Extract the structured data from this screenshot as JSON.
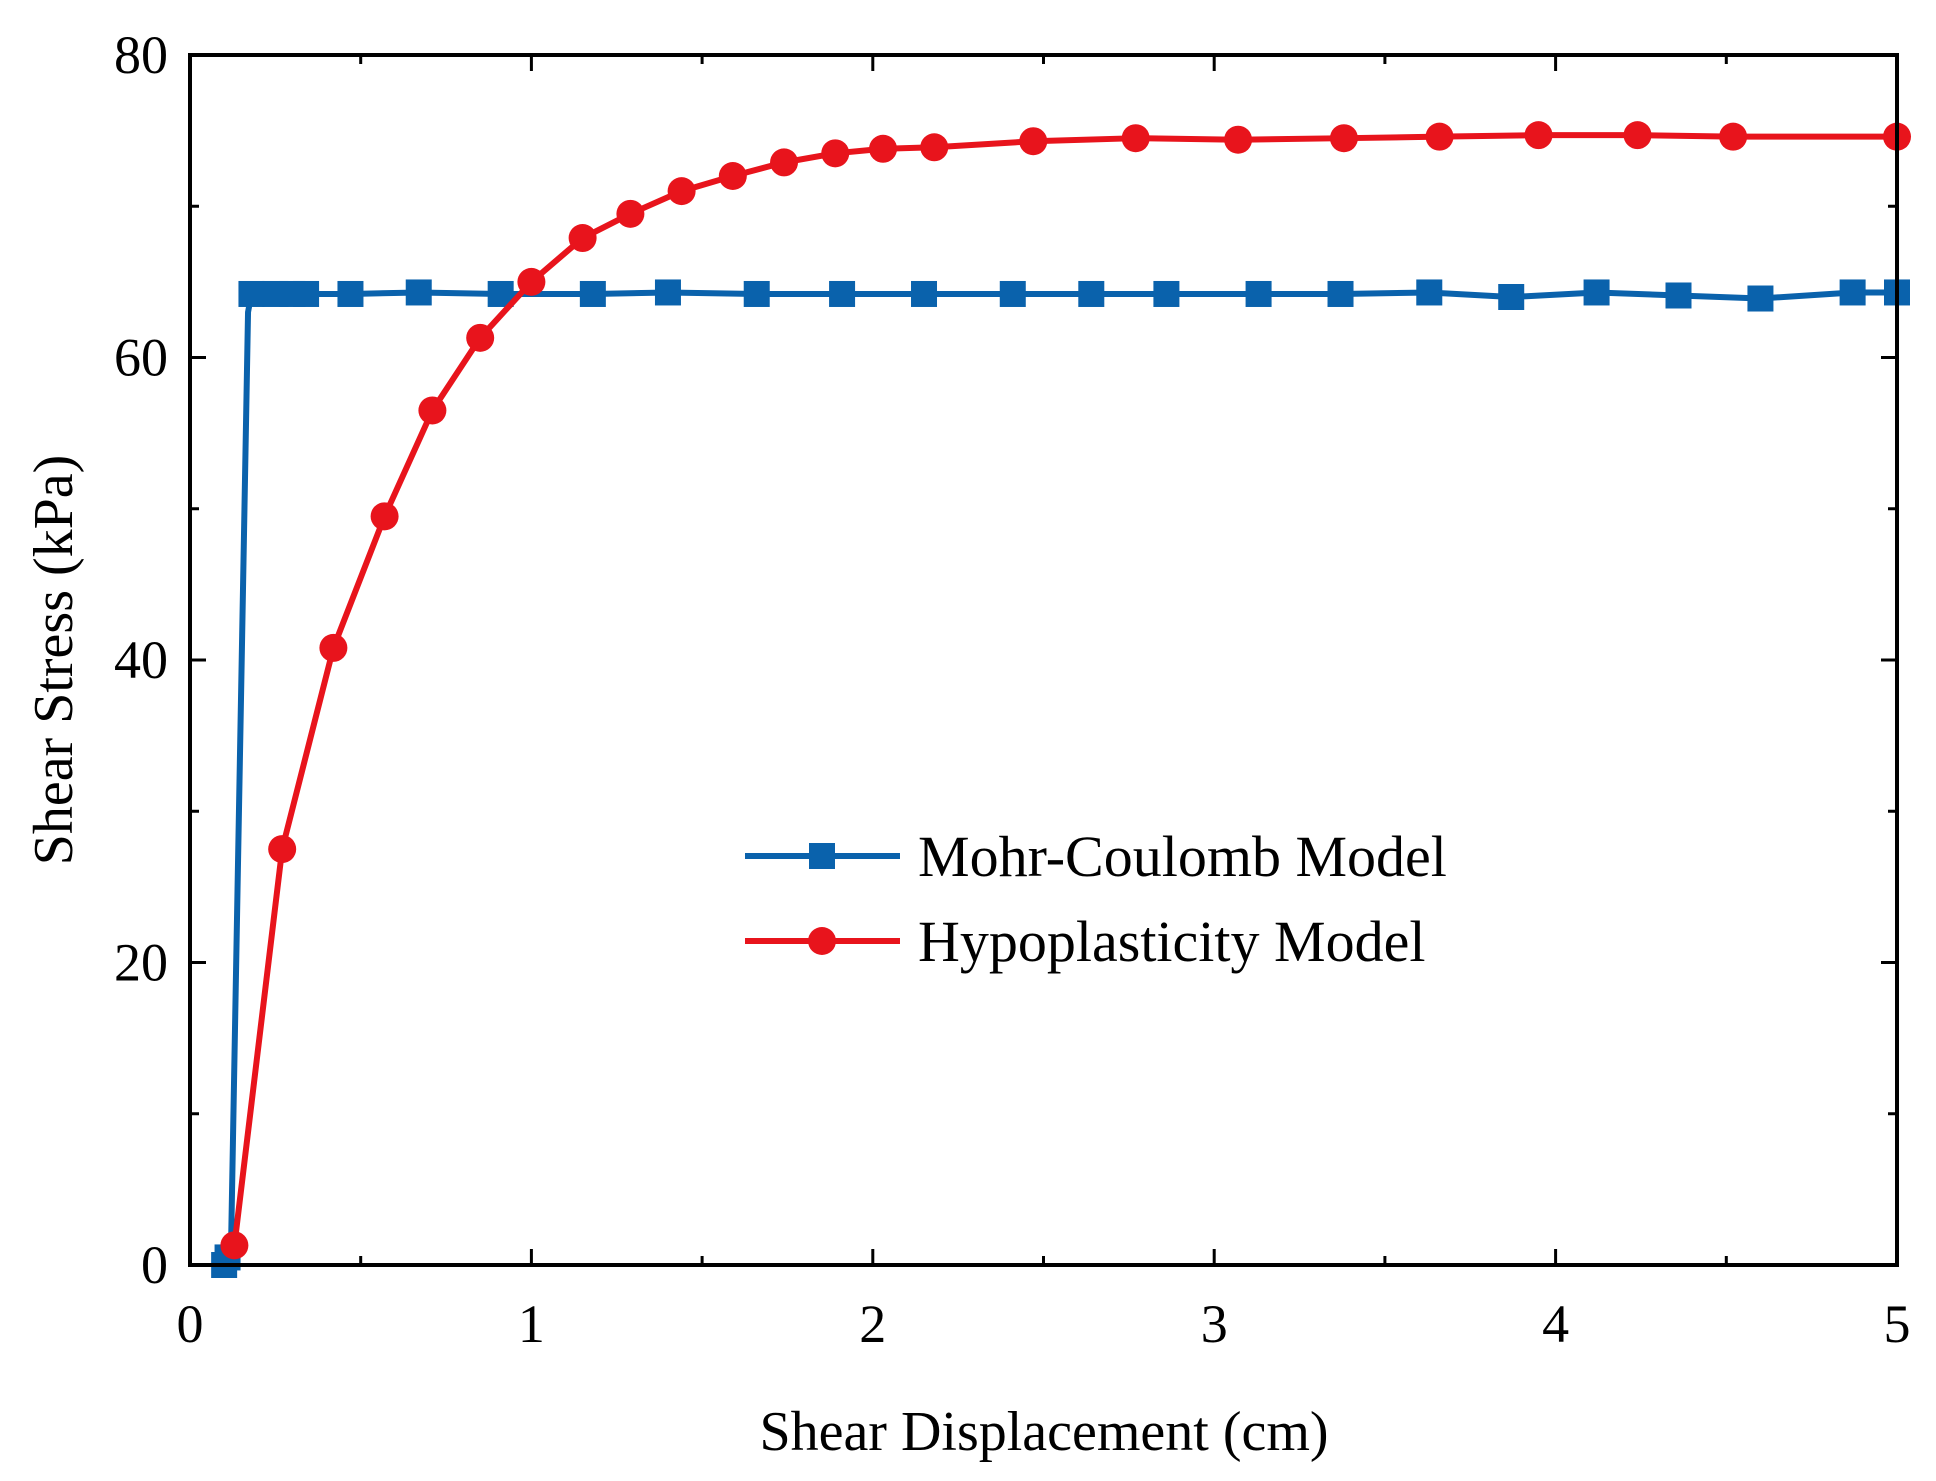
{
  "chart_data": {
    "type": "line",
    "title": "",
    "xlabel": "Shear Displacement (cm)",
    "ylabel": "Shear Stress (kPa)",
    "xlim": [
      0,
      5
    ],
    "ylim": [
      0,
      80
    ],
    "xticks": [
      0,
      1,
      2,
      3,
      4,
      5
    ],
    "yticks": [
      0,
      20,
      40,
      60,
      80
    ],
    "grid": false,
    "legend_position": "center-right",
    "series": [
      {
        "name": "Mohr-Coulomb Model",
        "color": "#0a62ac",
        "marker": "square",
        "line_x": [
          0.1,
          0.11,
          0.12,
          0.17,
          0.18,
          0.25,
          0.3,
          0.34,
          0.47,
          0.67,
          0.91,
          1.18,
          1.4,
          1.66,
          1.91,
          2.15,
          2.41,
          2.64,
          2.86,
          3.13,
          3.37,
          3.63,
          3.87,
          4.12,
          4.36,
          4.6,
          4.87,
          5.0
        ],
        "line_y": [
          0.0,
          0.5,
          1.0,
          63.0,
          64.2,
          64.2,
          64.2,
          64.2,
          64.2,
          64.3,
          64.2,
          64.2,
          64.3,
          64.2,
          64.2,
          64.2,
          64.2,
          64.2,
          64.2,
          64.2,
          64.2,
          64.3,
          64.0,
          64.3,
          64.1,
          63.9,
          64.3,
          64.3
        ],
        "marker_x": [
          0.1,
          0.11,
          0.18,
          0.25,
          0.3,
          0.34,
          0.47,
          0.67,
          0.91,
          1.18,
          1.4,
          1.66,
          1.91,
          2.15,
          2.41,
          2.64,
          2.86,
          3.13,
          3.37,
          3.63,
          3.87,
          4.12,
          4.36,
          4.6,
          4.87,
          5.0
        ],
        "marker_y": [
          0.0,
          0.5,
          64.2,
          64.2,
          64.2,
          64.2,
          64.2,
          64.3,
          64.2,
          64.2,
          64.3,
          64.2,
          64.2,
          64.2,
          64.2,
          64.2,
          64.2,
          64.2,
          64.2,
          64.3,
          64.0,
          64.3,
          64.1,
          63.9,
          64.3,
          64.3
        ]
      },
      {
        "name": "Hypoplasticity Model",
        "color": "#e8141c",
        "marker": "circle",
        "x": [
          0.13,
          0.27,
          0.42,
          0.57,
          0.71,
          0.85,
          1.0,
          1.15,
          1.29,
          1.44,
          1.59,
          1.74,
          1.89,
          2.03,
          2.18,
          2.47,
          2.77,
          3.07,
          3.38,
          3.66,
          3.95,
          4.24,
          4.52,
          5.0
        ],
        "y": [
          1.3,
          27.5,
          40.8,
          49.5,
          56.5,
          61.3,
          65.0,
          67.9,
          69.5,
          71.0,
          72.0,
          72.9,
          73.5,
          73.8,
          73.9,
          74.3,
          74.5,
          74.4,
          74.5,
          74.6,
          74.7,
          74.7,
          74.6,
          74.6
        ]
      }
    ]
  }
}
